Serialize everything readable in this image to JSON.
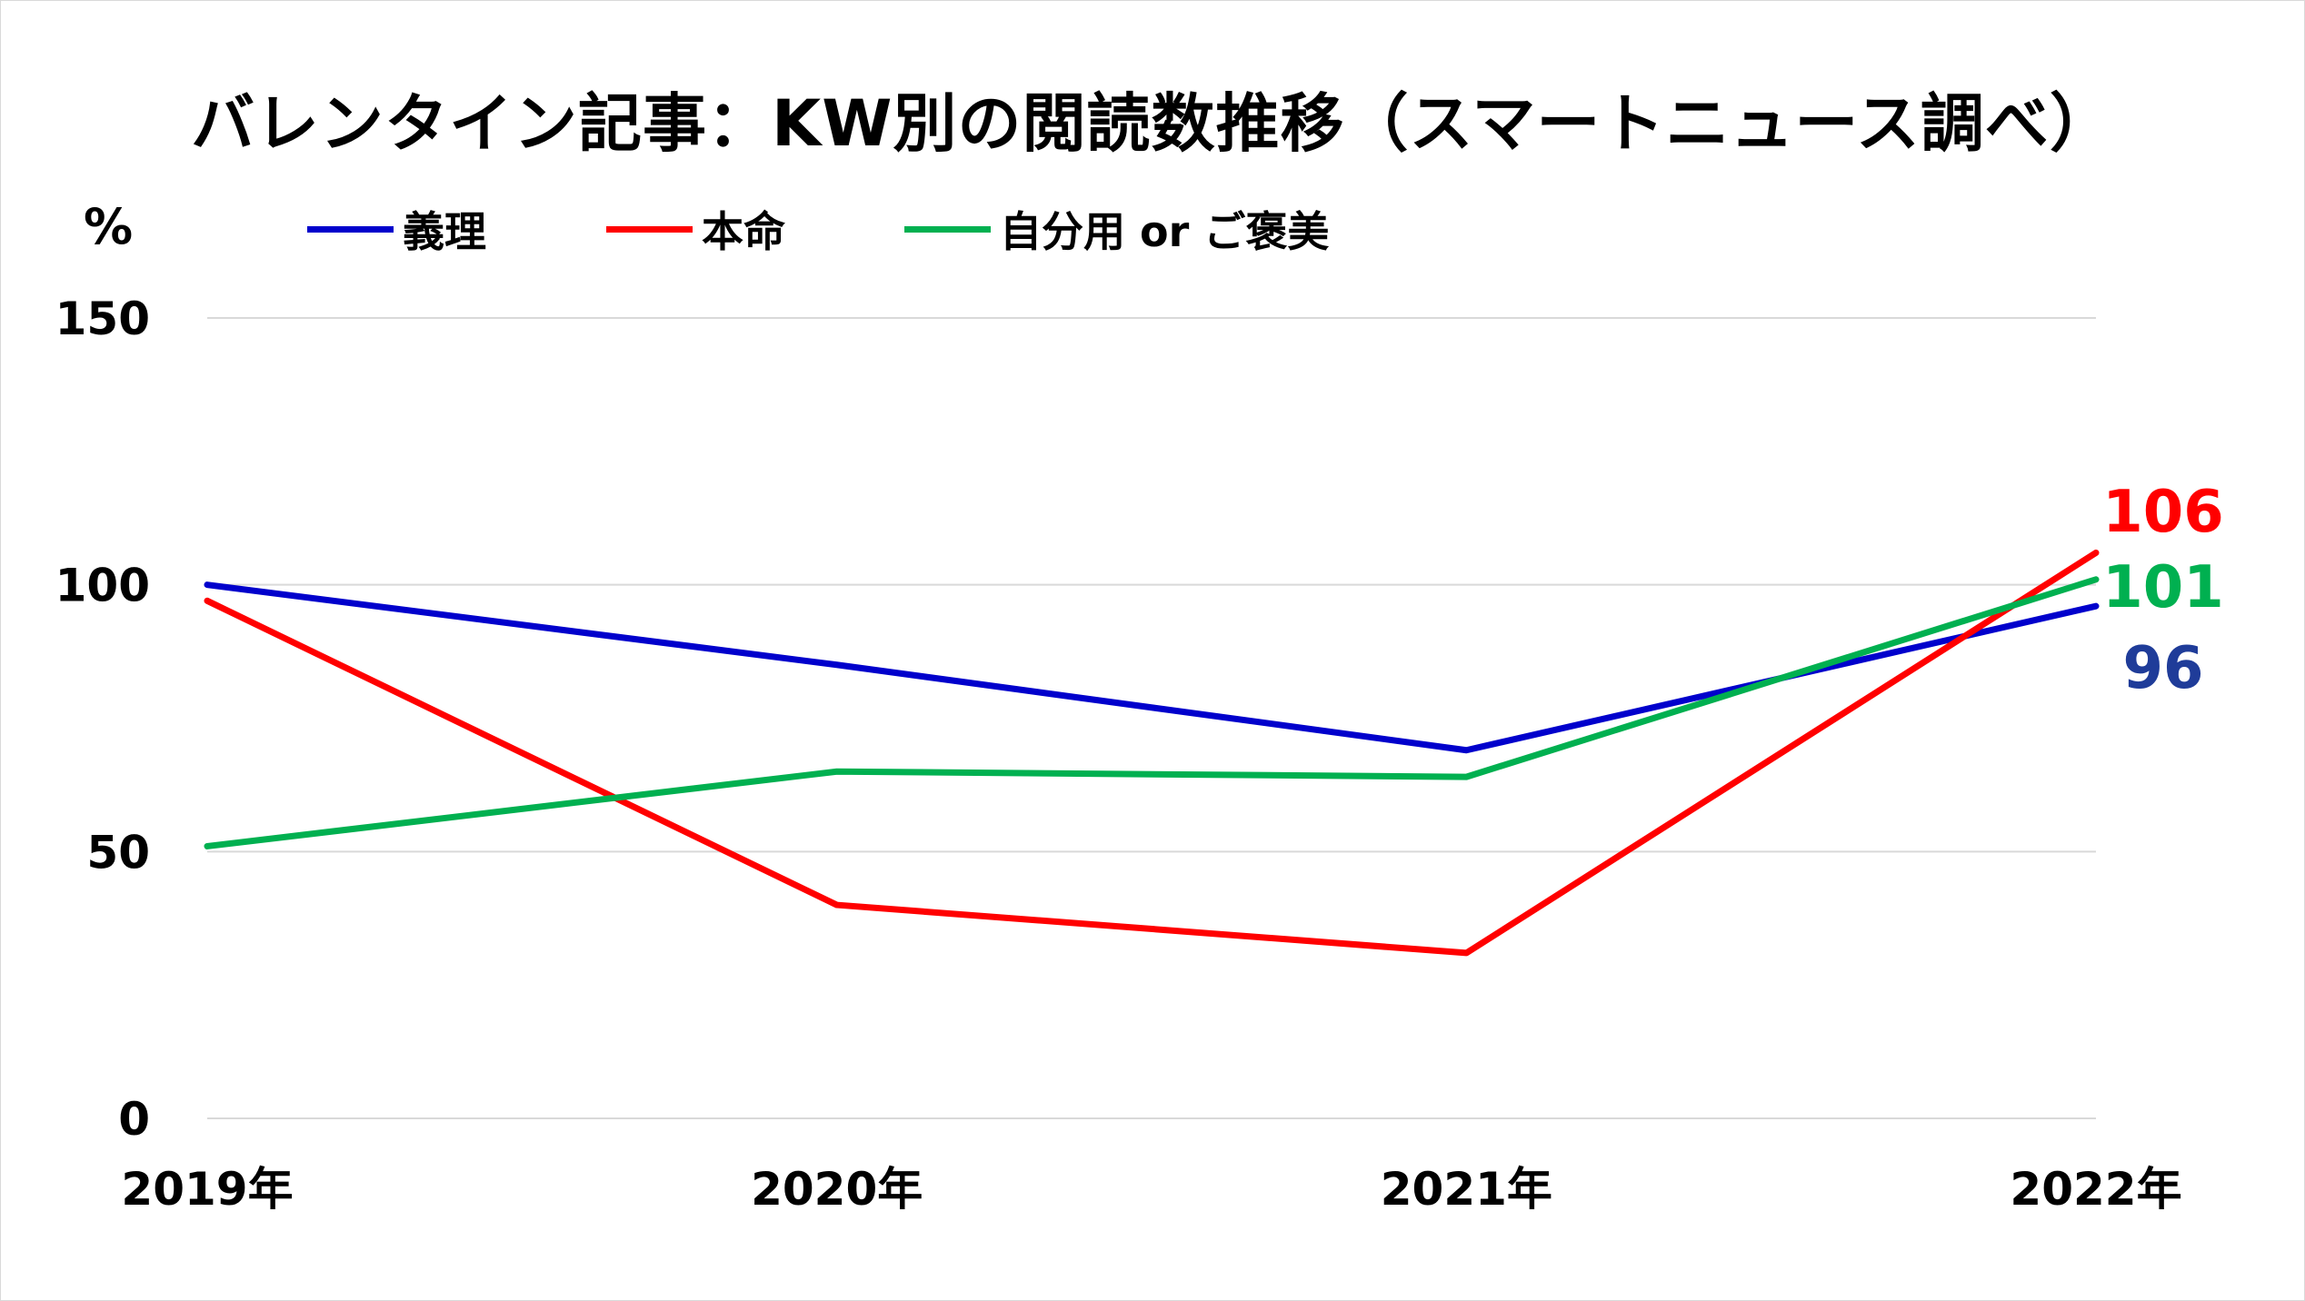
{
  "chart_data": {
    "type": "line",
    "title": "バレンタイン記事：KW別の閲読数推移（スマートニュース調べ）",
    "ylabel": "%",
    "xlabel": "",
    "categories": [
      "2019年",
      "2020年",
      "2021年",
      "2022年"
    ],
    "ylim": [
      0,
      150
    ],
    "yticks": [
      "0",
      "50",
      "100",
      "150"
    ],
    "grid": true,
    "legend_position": "top",
    "series": [
      {
        "name": "義理",
        "color": "#0000cc",
        "label_color": "#1f3c99",
        "values": [
          100,
          85,
          69,
          96
        ],
        "end_label": "96"
      },
      {
        "name": "本命",
        "color": "#ff0000",
        "label_color": "#ff0000",
        "values": [
          97,
          40,
          31,
          106
        ],
        "end_label": "106"
      },
      {
        "name": "自分用 or ご褒美",
        "color": "#00b050",
        "label_color": "#00b050",
        "values": [
          51,
          65,
          64,
          101
        ],
        "end_label": "101"
      }
    ]
  }
}
